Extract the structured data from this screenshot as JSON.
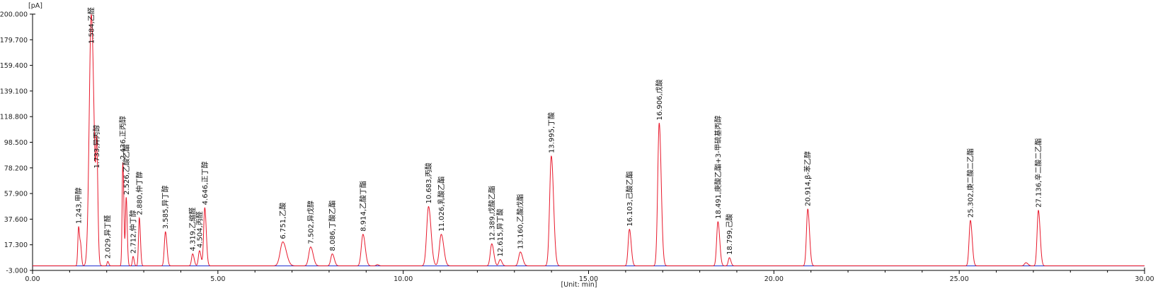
{
  "chart_data": {
    "type": "line",
    "title": "",
    "y_unit": "[pA]",
    "x_unit": "[Unit: min]",
    "xlim": [
      0,
      30
    ],
    "ylim": [
      -3.0,
      200.0
    ],
    "x_ticks": [
      0,
      5,
      10,
      15,
      20,
      25,
      30
    ],
    "x_tick_labels": [
      "0.00",
      "5.00",
      "10.00",
      "15.00",
      "20.00",
      "25.00",
      "30.00"
    ],
    "y_ticks": [
      -3.0,
      17.3,
      37.6,
      57.9,
      78.2,
      98.5,
      118.8,
      139.1,
      159.4,
      179.7,
      200.0
    ],
    "y_tick_labels": [
      "-3.000",
      "17.300",
      "37.600",
      "57.900",
      "78.200",
      "98.500",
      "118.800",
      "139.100",
      "159.400",
      "179.700",
      "200.000"
    ],
    "grid": false,
    "colors": {
      "signal": "#e8192c",
      "baseline": "#1d27c9",
      "axis": "#000000"
    },
    "baseline_y": 0.6,
    "peaks": [
      {
        "rt": 1.243,
        "height": 31.0,
        "width": 0.022,
        "label": "1.243,甲醇"
      },
      {
        "rt": 1.3,
        "height": 12.5,
        "width": 0.018,
        "label": ""
      },
      {
        "rt": 1.584,
        "height": 199.0,
        "width": 0.055,
        "label": "1.584,乙醛"
      },
      {
        "rt": 1.733,
        "height": 75.0,
        "width": 0.022,
        "label": "1.733,异丙醇"
      },
      {
        "rt": 2.029,
        "height": 3.5,
        "width": 0.02,
        "label": "2.029,异丁醛"
      },
      {
        "rt": 2.436,
        "height": 82.0,
        "width": 0.02,
        "label": "2.436,正丙醇"
      },
      {
        "rt": 2.526,
        "height": 54.0,
        "width": 0.02,
        "label": "2.526,乙酸乙酯"
      },
      {
        "rt": 2.712,
        "height": 7.5,
        "width": 0.02,
        "label": "2.712,仲丁醇"
      },
      {
        "rt": 2.88,
        "height": 38.0,
        "width": 0.022,
        "label": "2.880,仲丁醇"
      },
      {
        "rt": 3.585,
        "height": 27.0,
        "width": 0.03,
        "label": "3.585,异丁醇"
      },
      {
        "rt": 4.319,
        "height": 9.5,
        "width": 0.03,
        "label": "4.319,乙缩醛"
      },
      {
        "rt": 4.504,
        "height": 12.0,
        "width": 0.03,
        "label": "4.504,丙醛"
      },
      {
        "rt": 4.646,
        "height": 46.0,
        "width": 0.03,
        "label": "4.646,正丁醇"
      },
      {
        "rt": 6.751,
        "height": 19.0,
        "width": 0.07,
        "label": "6.751,乙酸"
      },
      {
        "rt": 7.502,
        "height": 15.0,
        "width": 0.05,
        "label": "7.502,异戊醇"
      },
      {
        "rt": 8.086,
        "height": 9.5,
        "width": 0.04,
        "label": "8.086,丁酸乙酯"
      },
      {
        "rt": 8.914,
        "height": 25.0,
        "width": 0.045,
        "label": "8.914,乙酸丁酯"
      },
      {
        "rt": 9.3,
        "height": 1.0,
        "width": 0.03,
        "label": ""
      },
      {
        "rt": 10.683,
        "height": 47.0,
        "width": 0.05,
        "label": "10.683,丙酸"
      },
      {
        "rt": 11.026,
        "height": 25.0,
        "width": 0.05,
        "label": "11.026,乳酸乙酯"
      },
      {
        "rt": 12.389,
        "height": 17.5,
        "width": 0.04,
        "label": "12.389,戊酸乙酯"
      },
      {
        "rt": 12.615,
        "height": 5.0,
        "width": 0.035,
        "label": "12.615,异丁酸"
      },
      {
        "rt": 13.16,
        "height": 11.0,
        "width": 0.045,
        "label": "13.160,乙酸戊酯"
      },
      {
        "rt": 13.995,
        "height": 87.0,
        "width": 0.045,
        "label": "13.995,丁酸"
      },
      {
        "rt": 16.103,
        "height": 29.0,
        "width": 0.035,
        "label": "16.103,己酸乙酯"
      },
      {
        "rt": 16.906,
        "height": 113.0,
        "width": 0.04,
        "label": "16.906,戊酸"
      },
      {
        "rt": 18.491,
        "height": 35.0,
        "width": 0.035,
        "label": "18.491,庚酸乙酯+3-甲硫基丙醇"
      },
      {
        "rt": 18.799,
        "height": 6.5,
        "width": 0.03,
        "label": "18.799,己酸"
      },
      {
        "rt": 20.914,
        "height": 45.0,
        "width": 0.035,
        "label": "20.914,β-苯乙醇"
      },
      {
        "rt": 25.302,
        "height": 36.0,
        "width": 0.035,
        "label": "25.302,庚二酸二乙酯"
      },
      {
        "rt": 26.8,
        "height": 2.5,
        "width": 0.04,
        "label": ""
      },
      {
        "rt": 27.136,
        "height": 44.0,
        "width": 0.035,
        "label": "27.136,辛二酸二乙酯"
      }
    ]
  }
}
